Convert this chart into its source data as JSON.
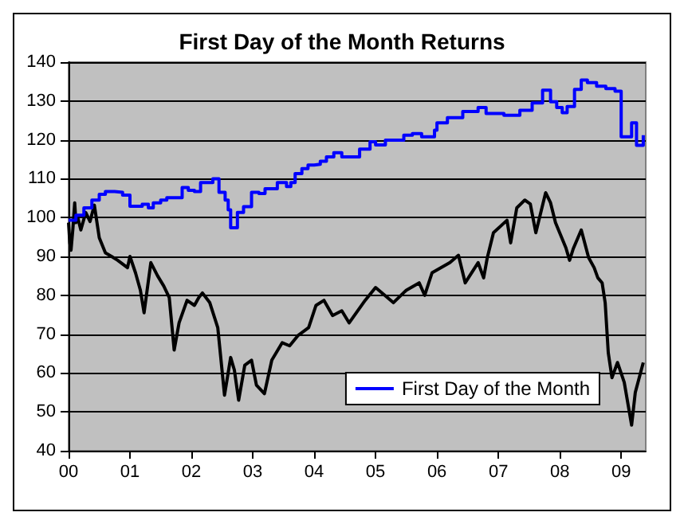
{
  "chart_data": {
    "type": "line",
    "title": "First Day of the Month Returns",
    "xlim": [
      2000,
      2009.4
    ],
    "xticks": [
      {
        "value": 2000,
        "label": "00"
      },
      {
        "value": 2001,
        "label": "01"
      },
      {
        "value": 2002,
        "label": "02"
      },
      {
        "value": 2003,
        "label": "03"
      },
      {
        "value": 2004,
        "label": "04"
      },
      {
        "value": 2005,
        "label": "05"
      },
      {
        "value": 2006,
        "label": "06"
      },
      {
        "value": 2007,
        "label": "07"
      },
      {
        "value": 2008,
        "label": "08"
      },
      {
        "value": 2009,
        "label": "09"
      }
    ],
    "ylim": [
      40,
      140
    ],
    "yticks": [
      40,
      50,
      60,
      70,
      80,
      90,
      100,
      110,
      120,
      130,
      140
    ],
    "grid": "y",
    "legend": "bottom right",
    "marker": "none",
    "line_style": "solid",
    "series": [
      {
        "color": "#000000",
        "x": [
          2000.0,
          2000.02,
          2000.04,
          2000.07,
          2000.1,
          2000.12,
          2000.15,
          2000.2,
          2000.28,
          2000.35,
          2000.42,
          2000.5,
          2000.6,
          2000.7,
          2000.8,
          2000.96,
          2001.0,
          2001.09,
          2001.17,
          2001.23,
          2001.34,
          2001.45,
          2001.55,
          2001.64,
          2001.72,
          2001.8,
          2001.93,
          2002.05,
          2002.12,
          2002.18,
          2002.3,
          2002.43,
          2002.54,
          2002.64,
          2002.7,
          2002.77,
          2002.87,
          2002.98,
          2003.06,
          2003.19,
          2003.31,
          2003.48,
          2003.6,
          2003.74,
          2003.91,
          2004.03,
          2004.16,
          2004.3,
          2004.45,
          2004.57,
          2004.83,
          2005.0,
          2005.29,
          2005.5,
          2005.71,
          2005.8,
          2005.92,
          2006.21,
          2006.35,
          2006.46,
          2006.67,
          2006.76,
          2006.82,
          2006.92,
          2007.14,
          2007.2,
          2007.3,
          2007.43,
          2007.52,
          2007.61,
          2007.77,
          2007.85,
          2007.93,
          2008.1,
          2008.16,
          2008.22,
          2008.35,
          2008.47,
          2008.56,
          2008.62,
          2008.69,
          2008.74,
          2008.79,
          2008.85,
          2008.94,
          2009.05,
          2009.17,
          2009.23,
          2009.36
        ],
        "values": [
          98.7,
          93.5,
          91.6,
          97,
          103.8,
          98.7,
          100,
          96.8,
          101.3,
          99,
          103.2,
          94.8,
          90.9,
          90,
          89,
          87.1,
          90,
          85.8,
          81.3,
          75.5,
          88.4,
          85,
          82.4,
          79.4,
          65.9,
          72.9,
          78.7,
          77.4,
          79.4,
          80.6,
          78.1,
          71.7,
          54.3,
          64,
          60.8,
          53,
          62,
          63.3,
          56.9,
          54.7,
          63.3,
          67.8,
          67,
          69.7,
          71.7,
          77.4,
          78.7,
          74.8,
          76,
          72.9,
          78.7,
          82,
          78.1,
          81.3,
          83.2,
          80,
          85.8,
          88.4,
          90.3,
          83.2,
          88.4,
          84.5,
          89.7,
          96.1,
          99.3,
          93.5,
          102.5,
          104.5,
          103.5,
          96.1,
          106.4,
          103.8,
          98.7,
          92.2,
          89,
          92,
          96.8,
          89.7,
          87.1,
          84.5,
          83.2,
          78,
          65.2,
          58.8,
          62.7,
          57.6,
          46.6,
          55,
          62.7
        ]
      },
      {
        "type": "step",
        "name": "First Day of the Month",
        "color": "#0000ff",
        "x": [
          2000.0,
          2000.12,
          2000.25,
          2000.38,
          2000.5,
          2000.6,
          2000.75,
          2000.88,
          2001.0,
          2001.2,
          2001.3,
          2001.38,
          2001.5,
          2001.6,
          2001.85,
          2001.95,
          2002.05,
          2002.15,
          2002.35,
          2002.45,
          2002.55,
          2002.6,
          2002.64,
          2002.75,
          2002.85,
          2002.98,
          2003.1,
          2003.2,
          2003.4,
          2003.55,
          2003.62,
          2003.69,
          2003.8,
          2003.9,
          2004.0,
          2004.1,
          2004.2,
          2004.32,
          2004.45,
          2004.74,
          2004.91,
          2005.0,
          2005.16,
          2005.46,
          2005.6,
          2005.75,
          2005.96,
          2006.0,
          2006.17,
          2006.42,
          2006.67,
          2006.8,
          2007.09,
          2007.35,
          2007.55,
          2007.72,
          2007.85,
          2007.95,
          2008.04,
          2008.12,
          2008.24,
          2008.35,
          2008.45,
          2008.6,
          2008.75,
          2008.9,
          2009.0,
          2009.17,
          2009.25,
          2009.36
        ],
        "values": [
          99.3,
          100.6,
          102.5,
          104.5,
          106,
          106.7,
          106.5,
          105.8,
          102.9,
          103.4,
          102.5,
          103.8,
          104.5,
          105.1,
          107.7,
          107,
          106.7,
          109,
          110,
          106.5,
          104.5,
          102,
          97.4,
          101.3,
          102.8,
          106.5,
          106.2,
          107.4,
          109,
          108,
          109,
          111.3,
          112.6,
          113.5,
          113.7,
          114.5,
          115.6,
          116.7,
          115.6,
          117.6,
          119.5,
          118.7,
          119.9,
          121.2,
          121.6,
          120.8,
          122.5,
          124.4,
          125.7,
          127.3,
          128.3,
          126.8,
          126.3,
          127.6,
          129.5,
          132.8,
          129.8,
          128.3,
          127,
          128.6,
          133,
          135.4,
          134.7,
          133.8,
          133.2,
          132.5,
          120.8,
          124.4,
          118.6,
          121.2
        ]
      }
    ]
  }
}
